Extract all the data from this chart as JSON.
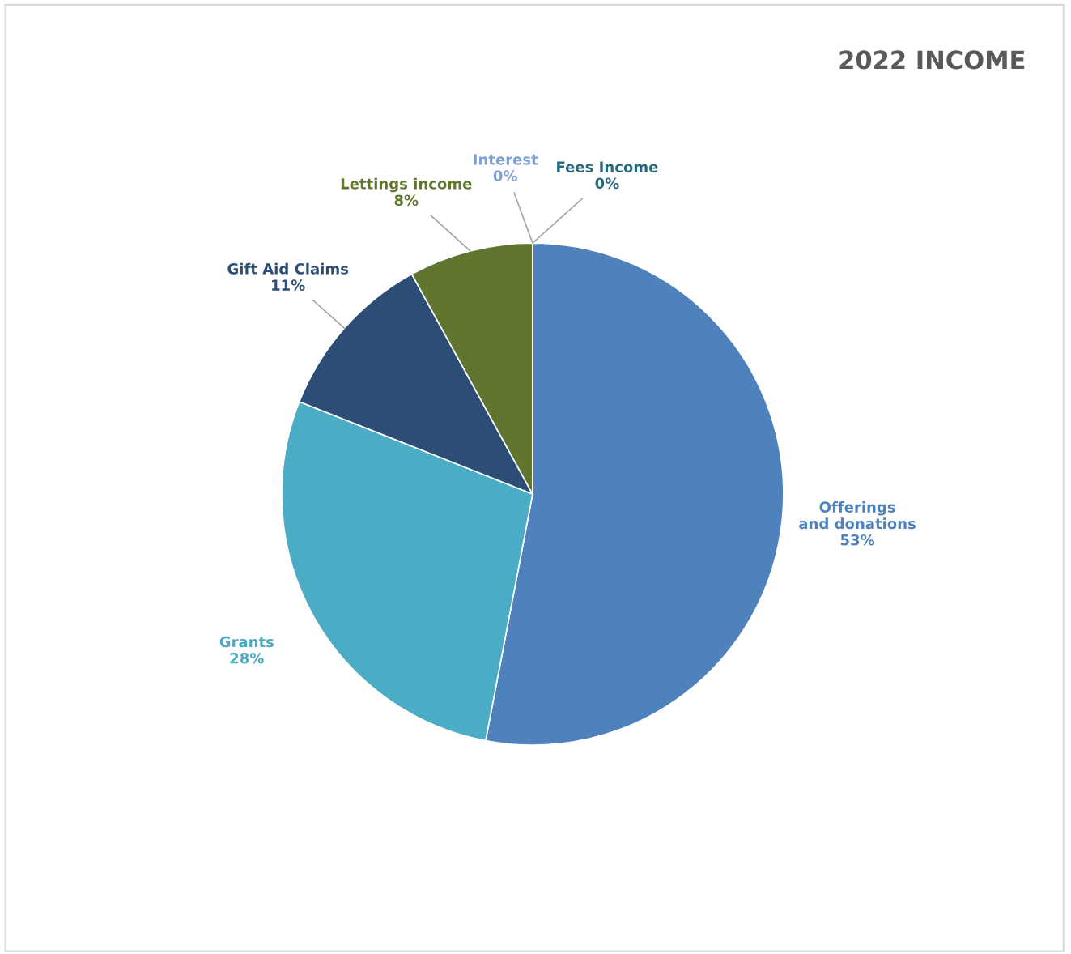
{
  "chart_data": {
    "type": "pie",
    "title": "2022 INCOME",
    "categories": [
      "Offerings and donations",
      "Grants",
      "Gift Aid Claims",
      "Lettings income",
      "Interest",
      "Fees Income"
    ],
    "values": [
      53,
      28,
      11,
      8,
      0,
      0
    ],
    "colors": [
      "#4f81bd",
      "#4bacc6",
      "#2c4d75",
      "#5f7530",
      "#7fa0d4",
      "#276a7c"
    ],
    "value_labels": [
      "53%",
      "28%",
      "11%",
      "8%",
      "0%",
      "0%"
    ],
    "legend": false
  }
}
